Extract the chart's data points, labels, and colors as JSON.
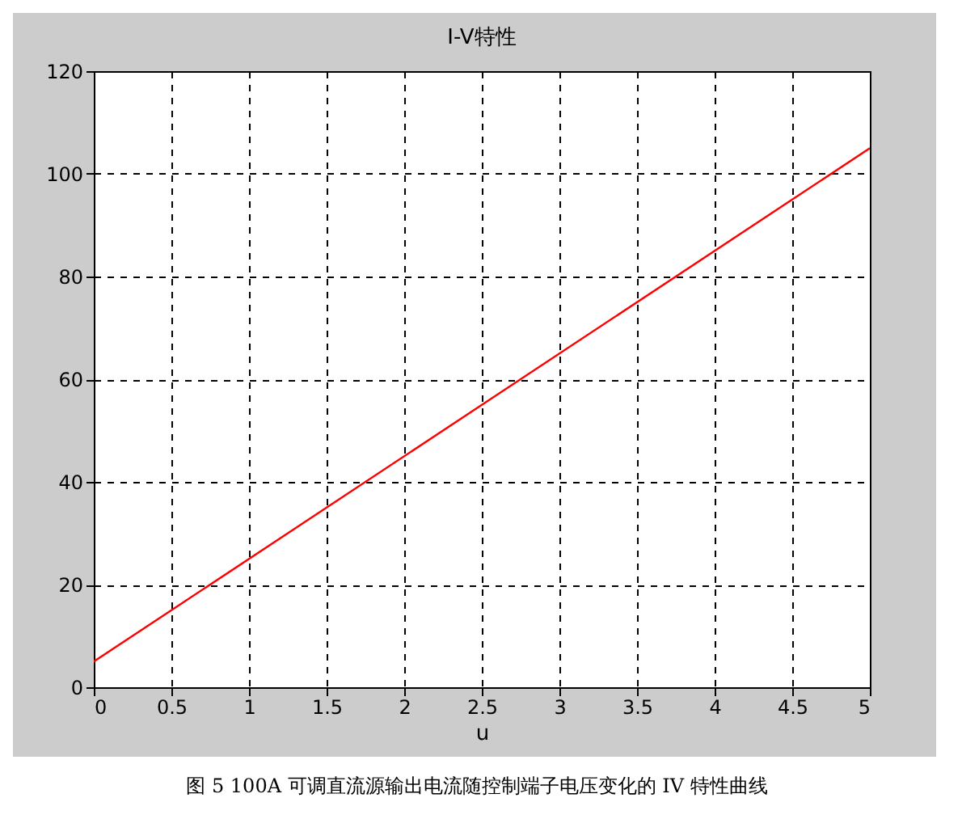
{
  "chart_data": {
    "type": "line",
    "title": "I-V特性",
    "xlabel": "u",
    "x": [
      0,
      5
    ],
    "series": [
      {
        "color": "#ff0000",
        "values": [
          5,
          105
        ]
      }
    ],
    "xlim": [
      0,
      5
    ],
    "xticks": [
      0,
      0.5,
      1,
      1.5,
      2,
      2.5,
      3,
      3.5,
      4,
      4.5,
      5
    ],
    "ylim": [
      0,
      120
    ],
    "yticks": [
      0,
      20,
      40,
      60,
      80,
      100,
      120
    ],
    "grid": true,
    "annotations": [
      "图 5 100A 可调直流源输出电流随控制端子电压变化的 IV 特性曲线"
    ]
  }
}
